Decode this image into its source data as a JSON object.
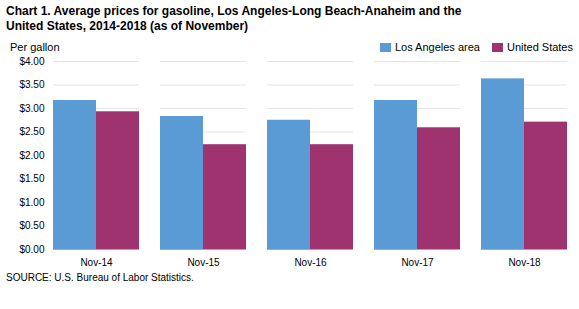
{
  "chart_data": {
    "type": "bar",
    "title": "Chart 1. Average prices for gasoline, Los Angeles-Long Beach-Anaheim and the\nUnited States, 2014-2018  (as of November)",
    "ylabel": "Per gallon",
    "source": "SOURCE: U.S. Bureau of Labor Statistics.",
    "categories": [
      "Nov-14",
      "Nov-15",
      "Nov-16",
      "Nov-17",
      "Nov-18"
    ],
    "series": [
      {
        "name": "Los Angeles area",
        "color": "#5B9BD5",
        "values": [
          3.17,
          2.83,
          2.75,
          3.17,
          3.63
        ]
      },
      {
        "name": "United States",
        "color": "#9E3370",
        "values": [
          2.93,
          2.23,
          2.23,
          2.59,
          2.71
        ]
      }
    ],
    "ylim": [
      0,
      4.0
    ],
    "yticks": [
      {
        "value": 0.0,
        "label": "$0.00"
      },
      {
        "value": 0.5,
        "label": "$0.50"
      },
      {
        "value": 1.0,
        "label": "$1.00"
      },
      {
        "value": 1.5,
        "label": "$1.50"
      },
      {
        "value": 2.0,
        "label": "$2.00"
      },
      {
        "value": 2.5,
        "label": "$2.50"
      },
      {
        "value": 3.0,
        "label": "$3.00"
      },
      {
        "value": 3.5,
        "label": "$3.50"
      },
      {
        "value": 4.0,
        "label": "$4.00"
      }
    ],
    "grid": true,
    "legend": "upper right"
  }
}
